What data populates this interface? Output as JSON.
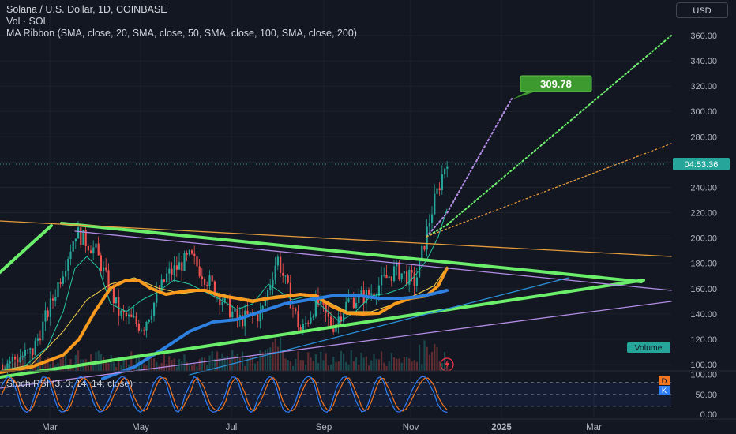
{
  "header": {
    "symbol_line": "Solana / U.S. Dollar, 1D, COINBASE",
    "volume_line": "Vol · SOL",
    "indicator_line": "MA Ribbon (SMA, close, 20, SMA, close, 50, SMA, close, 100, SMA, close, 200)",
    "currency_button": "USD"
  },
  "colors": {
    "background": "#131722",
    "grid": "#1e222d",
    "up": "#26a69a",
    "down": "#ef5350",
    "green_line": "#6bef6b",
    "ma20": "#26c6a0",
    "ma50": "#f5d04c",
    "ma100": "#2d7fe0",
    "ma200": "#f79a1e",
    "purple": "#b48ce6",
    "orange_line": "#e69a3c",
    "blue_trend": "#2a8ed6",
    "volume_badge": "#26a69a",
    "target_badge": "#3d9a2e",
    "stoch_k": "#2f7ef7",
    "stoch_d": "#f5741e"
  },
  "chart_data": {
    "type": "line",
    "price_axis": {
      "ticks": [
        "360.00",
        "340.00",
        "320.00",
        "300.00",
        "280.00",
        "240.00",
        "220.00",
        "200.00",
        "180.00",
        "160.00",
        "140.00",
        "120.00",
        "100.00"
      ],
      "range": [
        88,
        370
      ]
    },
    "x_axis": {
      "labels": [
        "Mar",
        "May",
        "Jul",
        "Sep",
        "Nov",
        "2025",
        "Mar"
      ]
    },
    "price_path": {
      "dates_approx": [
        "2024-02-01",
        "2024-02-20",
        "2024-03-05",
        "2024-03-18",
        "2024-04-01",
        "2024-04-13",
        "2024-04-25",
        "2024-05-10",
        "2024-05-20",
        "2024-06-05",
        "2024-06-20",
        "2024-07-05",
        "2024-07-22",
        "2024-08-05",
        "2024-08-20",
        "2024-09-06",
        "2024-09-25",
        "2024-10-10",
        "2024-10-25",
        "2024-11-05",
        "2024-11-12",
        "2024-11-17"
      ],
      "values": [
        100,
        110,
        150,
        205,
        190,
        140,
        130,
        170,
        185,
        160,
        135,
        140,
        185,
        125,
        150,
        130,
        150,
        155,
        175,
        165,
        220,
        263
      ]
    },
    "last_price_label": "04:53:36",
    "target_label": "309.78",
    "volume_badge": "Volume",
    "stoch_rsi": {
      "title": "Stoch RSI (3, 3, 14, 14, close)",
      "ticks": [
        "100.00",
        "50.00",
        "0.00"
      ],
      "upper_band": 80,
      "lower_band": 20,
      "badges": [
        "D",
        "K"
      ]
    }
  }
}
